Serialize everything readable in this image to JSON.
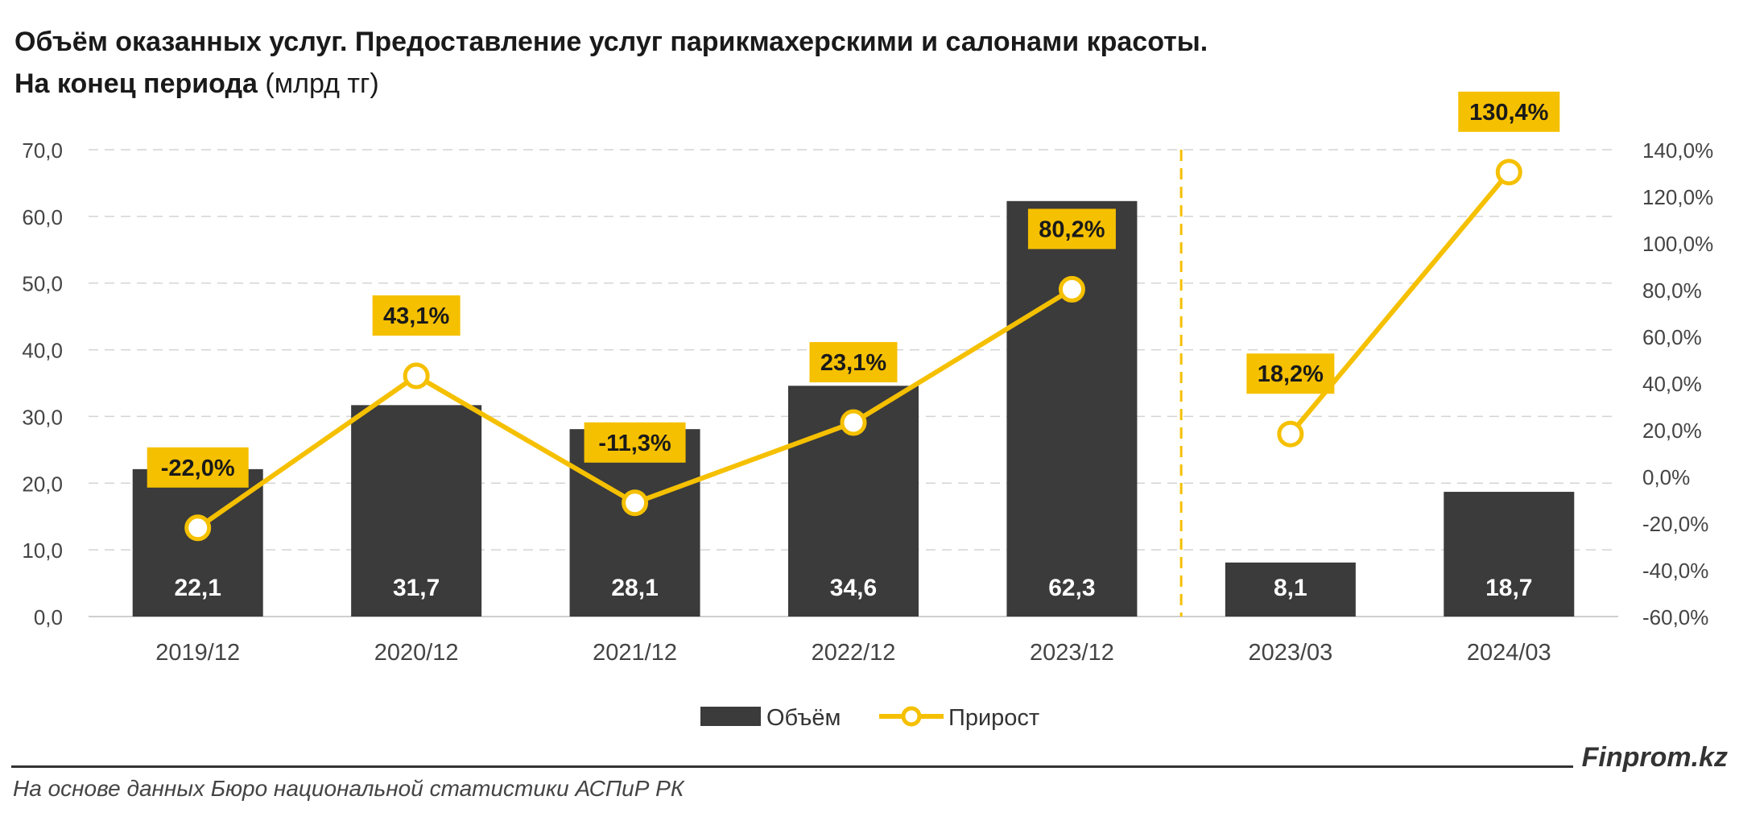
{
  "header": {
    "title_line1": "Объём оказанных услуг. Предоставление услуг парикмахерскими и салонами красоты.",
    "title_line2_bold": "На конец периода",
    "title_line2_unit": "(млрд тг)"
  },
  "footer": {
    "brand": "Finprom.kz",
    "source": "На основе данных Бюро национальной статистики АСПиР РК"
  },
  "colors": {
    "bar": "#3b3b3b",
    "line": "#f5c000",
    "label_bg": "#f5c000",
    "grid": "#d4d4d4",
    "axis_text": "#444444"
  },
  "chart_data": {
    "type": "bar",
    "categories": [
      "2019/12",
      "2020/12",
      "2021/12",
      "2022/12",
      "2023/12",
      "2023/03",
      "2024/03"
    ],
    "series": [
      {
        "name": "Объём",
        "type": "bar",
        "axis": "left",
        "values": [
          22.1,
          31.7,
          28.1,
          34.6,
          62.3,
          8.1,
          18.7
        ],
        "labels": [
          "22,1",
          "31,7",
          "28,1",
          "34,6",
          "62,3",
          "8,1",
          "18,7"
        ]
      },
      {
        "name": "Прирост",
        "type": "line",
        "axis": "right",
        "values": [
          -22.0,
          43.1,
          -11.3,
          23.1,
          80.2,
          18.2,
          130.4
        ],
        "labels": [
          "-22,0%",
          "43,1%",
          "-11,3%",
          "23,1%",
          "80,2%",
          "18,2%",
          "130,4%"
        ],
        "segments": [
          [
            0,
            4
          ],
          [
            5,
            6
          ]
        ]
      }
    ],
    "y_left": {
      "min": 0,
      "max": 70,
      "step": 10,
      "tick_labels": [
        "0,0",
        "10,0",
        "20,0",
        "30,0",
        "40,0",
        "50,0",
        "60,0",
        "70,0"
      ]
    },
    "y_right": {
      "min": -60,
      "max": 140,
      "step": 20,
      "tick_labels": [
        "-60,0%",
        "-40,0%",
        "-20,0%",
        "0,0%",
        "20,0%",
        "40,0%",
        "60,0%",
        "80,0%",
        "100,0%",
        "120,0%",
        "140,0%"
      ]
    },
    "separator_after_index": 4,
    "grid": true,
    "legend": {
      "position": "bottom",
      "items": [
        "Объём",
        "Прирост"
      ]
    }
  }
}
